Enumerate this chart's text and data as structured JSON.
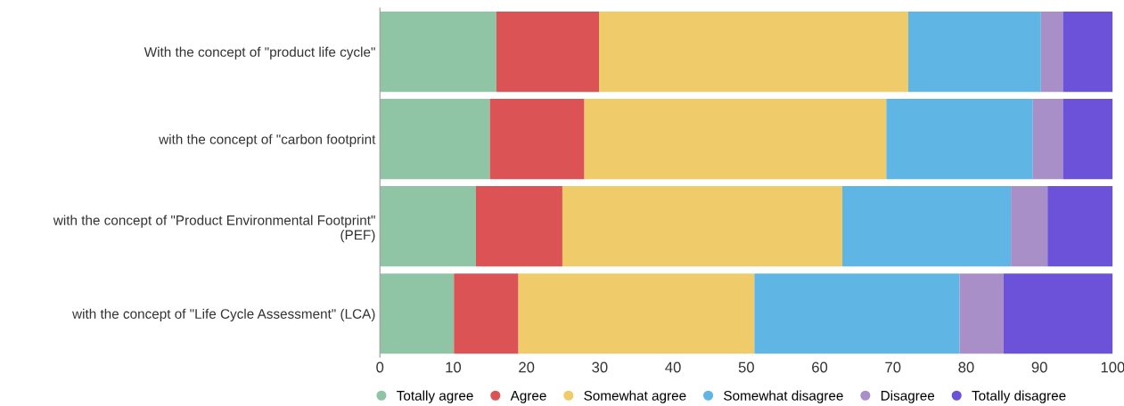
{
  "chart_data": {
    "type": "bar",
    "orientation": "horizontal",
    "stacked": true,
    "categories": [
      "With the concept of \"product life cycle\"",
      "with the concept of \"carbon footprint",
      "with the concept of \"Product Environmental Footprint\"\n(PEF)",
      "with the concept of \"Life Cycle Assessment\" (LCA)"
    ],
    "series": [
      {
        "name": "Totally agree",
        "color": "#8fc4a4",
        "values": [
          15.9,
          15.0,
          13.1,
          10.1
        ]
      },
      {
        "name": "Agree",
        "color": "#dc5356",
        "values": [
          14.0,
          12.9,
          11.8,
          8.8
        ]
      },
      {
        "name": "Somewhat agree",
        "color": "#f0cb6a",
        "values": [
          42.2,
          41.2,
          38.2,
          32.2
        ]
      },
      {
        "name": "Somewhat disagree",
        "color": "#5fb6e4",
        "values": [
          18.1,
          20.0,
          23.0,
          28.0
        ]
      },
      {
        "name": "Disagree",
        "color": "#a98fc8",
        "values": [
          3.0,
          4.1,
          5.0,
          6.0
        ]
      },
      {
        "name": "Totally disagree",
        "color": "#6b52d9",
        "values": [
          6.8,
          6.8,
          8.9,
          14.9
        ]
      }
    ],
    "xlim": [
      0,
      100
    ],
    "xticks": [
      0,
      10,
      20,
      30,
      40,
      50,
      60,
      70,
      80,
      90,
      100
    ],
    "grid": false,
    "legend": "bottom",
    "marker": "circle"
  }
}
